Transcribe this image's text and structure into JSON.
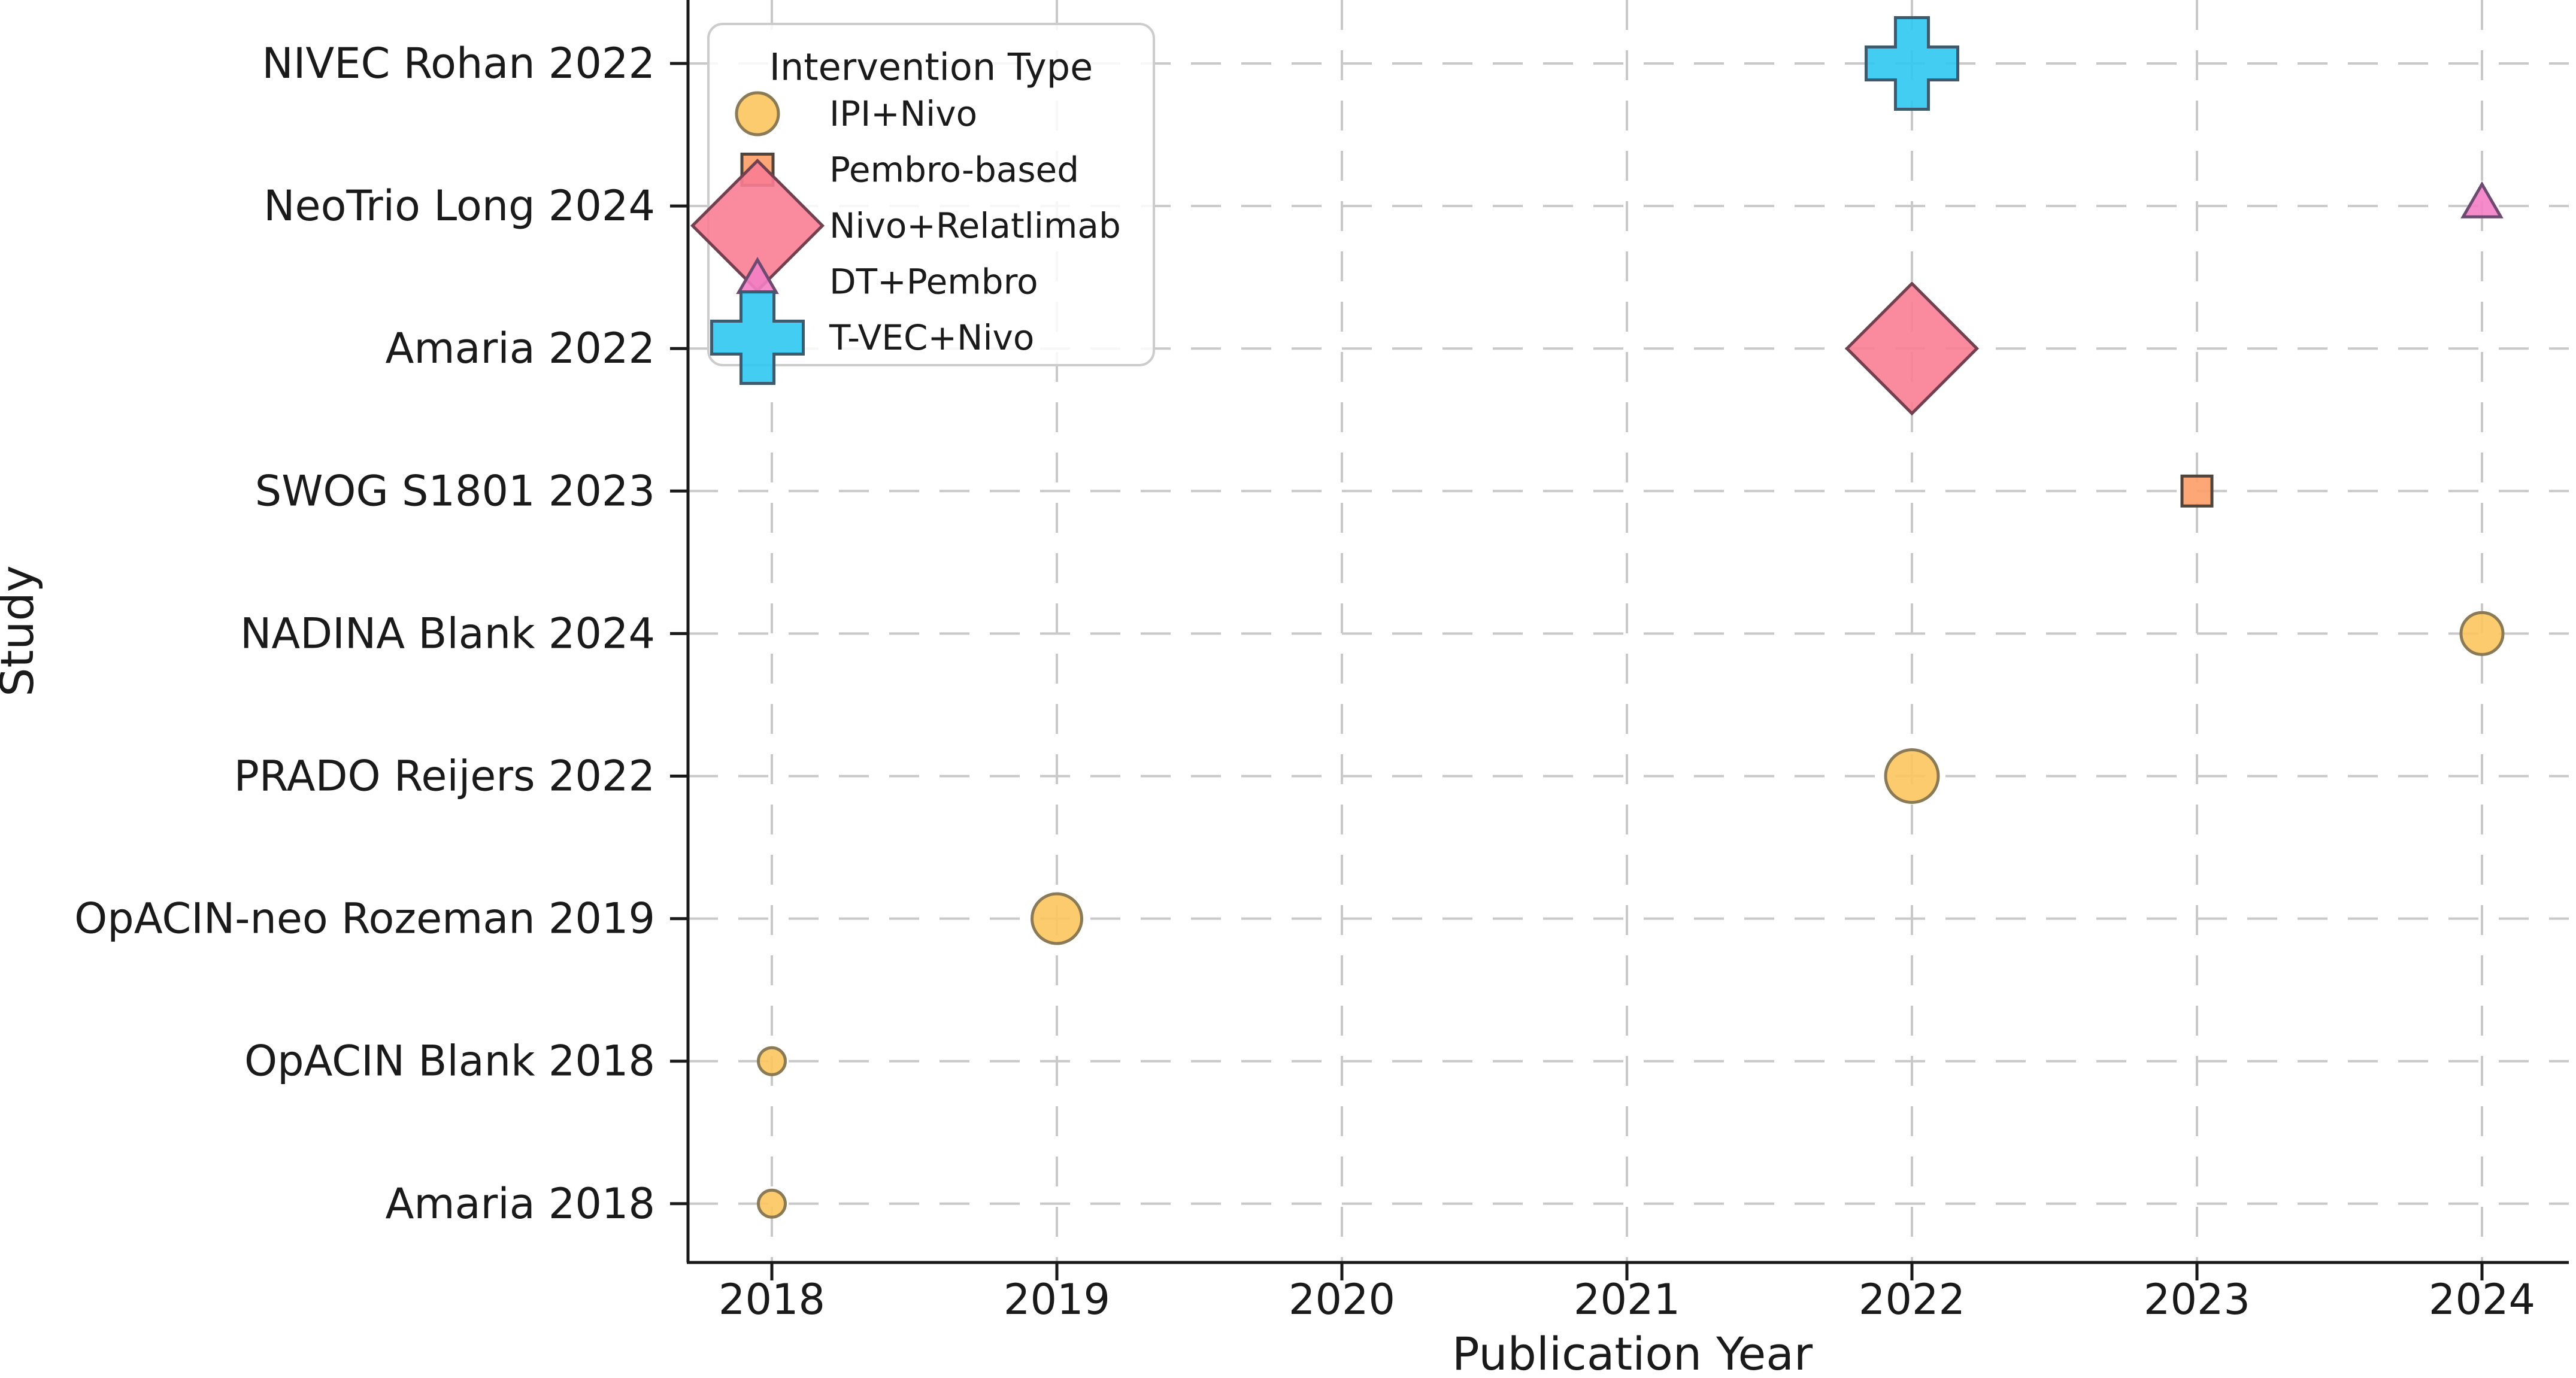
{
  "figure": {
    "background": "#ffffff",
    "grid_color": "#c9c9c9",
    "spine_color": "#1a1a1a",
    "text_color": "#1a1a1a"
  },
  "chart_data": {
    "type": "scatter",
    "title": "",
    "xlabel": "Publication Year",
    "ylabel": "Study",
    "x_ticks": [
      2018,
      2019,
      2020,
      2021,
      2022,
      2023,
      2024
    ],
    "xlim": [
      2017.7,
      2024.33
    ],
    "grid": "dashed both axes",
    "y_categories": [
      "NIVEC Rohan 2022",
      "NeoTrio Long 2024",
      "Amaria 2022",
      "SWOG S1801 2023",
      "NADINA Blank 2024",
      "PRADO Reijers 2022",
      "OpACIN-neo Rozeman 2019",
      "OpACIN Blank 2018",
      "Amaria 2018"
    ],
    "legend": {
      "title": "Intervention Type",
      "position": "upper left",
      "entries": [
        {
          "label": "IPI+Nivo",
          "shape": "circle",
          "size": 70,
          "fill": "#fbc55d",
          "edge": "#8a7a55"
        },
        {
          "label": "Pembro-based",
          "shape": "square",
          "size": 52,
          "fill": "#fc9d66",
          "edge": "#4f453d"
        },
        {
          "label": "Nivo+Relatlimab",
          "shape": "diamond",
          "size": 217,
          "fill": "#fa7d93",
          "edge": "#72404f"
        },
        {
          "label": "DT+Pembro",
          "shape": "triangle",
          "size": 63,
          "fill": "#f47ec4",
          "edge": "#6e4a70"
        },
        {
          "label": "T-VEC+Nivo",
          "shape": "cross",
          "size": 153,
          "fill": "#2fc8f2",
          "edge": "#3e5a6f"
        }
      ]
    },
    "points": [
      {
        "study": "NIVEC Rohan 2022",
        "row": 0,
        "year": 2022,
        "intervention": "T-VEC+Nivo",
        "shape": "cross",
        "size": 153
      },
      {
        "study": "NeoTrio Long 2024",
        "row": 1,
        "year": 2024,
        "intervention": "DT+Pembro",
        "shape": "triangle",
        "size": 63
      },
      {
        "study": "Amaria 2022",
        "row": 2,
        "year": 2022,
        "intervention": "Nivo+Relatlimab",
        "shape": "diamond",
        "size": 217
      },
      {
        "study": "SWOG S1801 2023",
        "row": 3,
        "year": 2023,
        "intervention": "Pembro-based",
        "shape": "square",
        "size": 50
      },
      {
        "study": "NADINA Blank 2024",
        "row": 4,
        "year": 2024,
        "intervention": "IPI+Nivo",
        "shape": "circle",
        "size": 70
      },
      {
        "study": "PRADO Reijers 2022",
        "row": 5,
        "year": 2022,
        "intervention": "IPI+Nivo",
        "shape": "circle",
        "size": 88
      },
      {
        "study": "OpACIN-neo Rozeman 2019",
        "row": 6,
        "year": 2019,
        "intervention": "IPI+Nivo",
        "shape": "circle",
        "size": 83
      },
      {
        "study": "OpACIN Blank 2018",
        "row": 7,
        "year": 2018,
        "intervention": "IPI+Nivo",
        "shape": "circle",
        "size": 45
      },
      {
        "study": "Amaria 2018",
        "row": 8,
        "year": 2018,
        "intervention": "IPI+Nivo",
        "shape": "circle",
        "size": 45
      }
    ]
  }
}
